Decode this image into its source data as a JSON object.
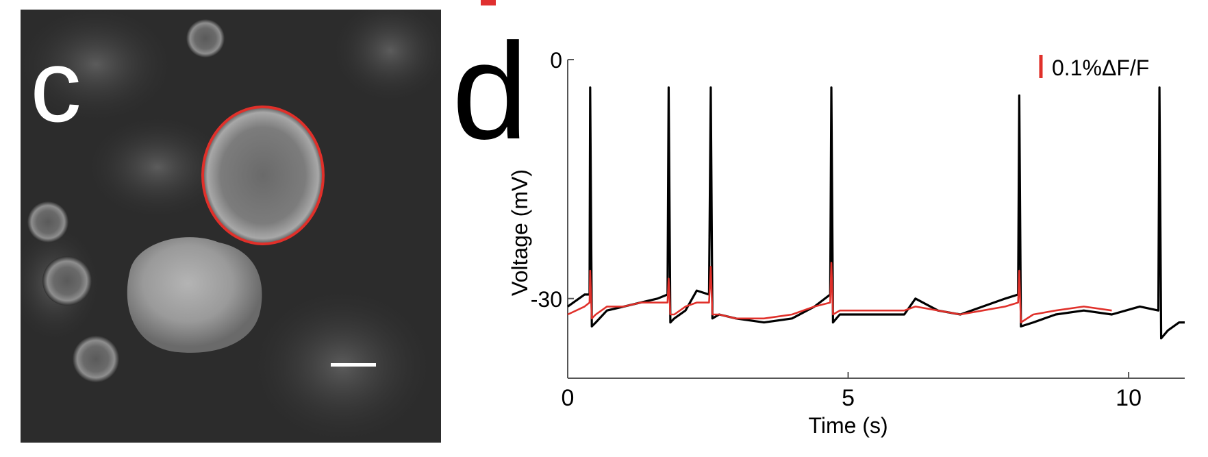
{
  "panels": {
    "c": {
      "label": "c",
      "outline_color": "#e0302a",
      "scale_bar": "scale-bar"
    },
    "d": {
      "label": "d",
      "legend_text": "0.1%ΔF/F",
      "legend_color": "#e0302a"
    }
  },
  "chart_data": {
    "type": "line",
    "title": "",
    "xlabel": "Time (s)",
    "ylabel": "Voltage (mV)",
    "xlim": [
      0,
      11
    ],
    "ylim": [
      -40,
      0
    ],
    "xticks": [
      0,
      5,
      10
    ],
    "yticks": [
      0,
      -30
    ],
    "grid": false,
    "legend": {
      "placement": "top-right",
      "entries": [
        "0.1%ΔF/F"
      ]
    },
    "baseline_mV": -31.5,
    "spike_times_s": [
      0.4,
      1.8,
      2.55,
      4.7,
      8.05,
      10.55
    ],
    "spike_peak_mV": -3.5,
    "series": [
      {
        "name": "",
        "color": "#000000",
        "x": [
          0,
          0.3,
          0.39,
          0.4,
          0.43,
          0.5,
          0.7,
          1.0,
          1.3,
          1.6,
          1.78,
          1.8,
          1.83,
          1.9,
          2.1,
          2.3,
          2.52,
          2.55,
          2.58,
          2.7,
          3.0,
          3.5,
          4.0,
          4.4,
          4.68,
          4.7,
          4.73,
          4.85,
          5.2,
          5.6,
          6.0,
          6.2,
          6.6,
          7.0,
          7.4,
          7.8,
          8.03,
          8.05,
          8.08,
          8.3,
          8.7,
          9.2,
          9.7,
          10.2,
          10.53,
          10.55,
          10.58,
          10.7,
          10.9,
          11.0
        ],
        "y": [
          -31.0,
          -29.5,
          -29.5,
          -3.5,
          -33.5,
          -33.0,
          -31.5,
          -31.0,
          -30.5,
          -30.0,
          -29.5,
          -3.5,
          -33.0,
          -32.5,
          -31.5,
          -29.0,
          -29.5,
          -3.5,
          -32.5,
          -32.0,
          -32.5,
          -33.0,
          -32.5,
          -31.0,
          -29.5,
          -3.5,
          -33.0,
          -32.0,
          -32.0,
          -32.0,
          -32.0,
          -30.0,
          -31.5,
          -32.0,
          -31.0,
          -30.0,
          -29.5,
          -4.5,
          -33.5,
          -33.0,
          -32.0,
          -31.5,
          -32.0,
          -31.0,
          -31.5,
          -3.5,
          -35.0,
          -34.0,
          -33.0,
          -33.0
        ]
      },
      {
        "name": "0.1%ΔF/F",
        "color": "#e0302a",
        "x": [
          0,
          0.3,
          0.39,
          0.4,
          0.43,
          0.5,
          0.7,
          1.0,
          1.3,
          1.6,
          1.78,
          1.8,
          1.83,
          1.9,
          2.1,
          2.3,
          2.52,
          2.55,
          2.58,
          2.7,
          3.0,
          3.5,
          4.0,
          4.4,
          4.68,
          4.7,
          4.73,
          4.85,
          5.2,
          5.6,
          6.0,
          6.2,
          6.6,
          7.0,
          7.4,
          7.8,
          8.03,
          8.05,
          8.08,
          8.3,
          8.7,
          9.2,
          9.7
        ],
        "y": [
          -32.0,
          -31.0,
          -30.5,
          -26.5,
          -32.5,
          -32.0,
          -31.0,
          -31.0,
          -30.5,
          -30.5,
          -30.5,
          -27.5,
          -32.0,
          -32.0,
          -31.0,
          -30.5,
          -30.5,
          -26.0,
          -32.0,
          -32.0,
          -32.5,
          -32.5,
          -32.0,
          -31.0,
          -30.5,
          -25.5,
          -32.0,
          -31.5,
          -31.5,
          -31.5,
          -31.5,
          -31.0,
          -31.5,
          -32.0,
          -31.5,
          -31.0,
          -30.5,
          -26.5,
          -33.0,
          -32.0,
          -31.5,
          -31.0,
          -31.5
        ]
      }
    ]
  }
}
